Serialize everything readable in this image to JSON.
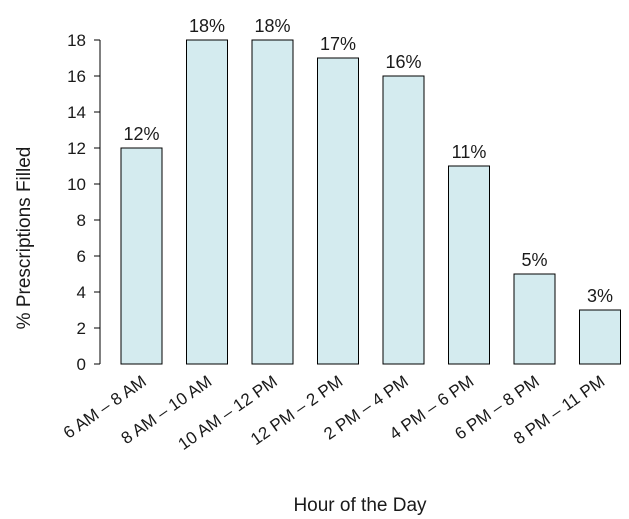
{
  "chart_data": {
    "type": "bar",
    "categories": [
      "6 AM – 8 AM",
      "8 AM – 10 AM",
      "10 AM – 12 PM",
      "12 PM – 2 PM",
      "2 PM – 4 PM",
      "4 PM – 6 PM",
      "6 PM – 8 PM",
      "8 PM – 11 PM"
    ],
    "values": [
      12,
      18,
      18,
      17,
      16,
      11,
      5,
      3
    ],
    "data_labels": [
      "12%",
      "18%",
      "18%",
      "17%",
      "16%",
      "11%",
      "5%",
      "3%"
    ],
    "xlabel": "Hour of the Day",
    "ylabel": "% Prescriptions Filled",
    "ylim": [
      0,
      18
    ],
    "yticks": [
      0,
      2,
      4,
      6,
      8,
      10,
      12,
      14,
      16,
      18
    ],
    "grid": false,
    "colors": {
      "bar_fill": "#d4ebef",
      "bar_stroke": "#000000"
    }
  }
}
